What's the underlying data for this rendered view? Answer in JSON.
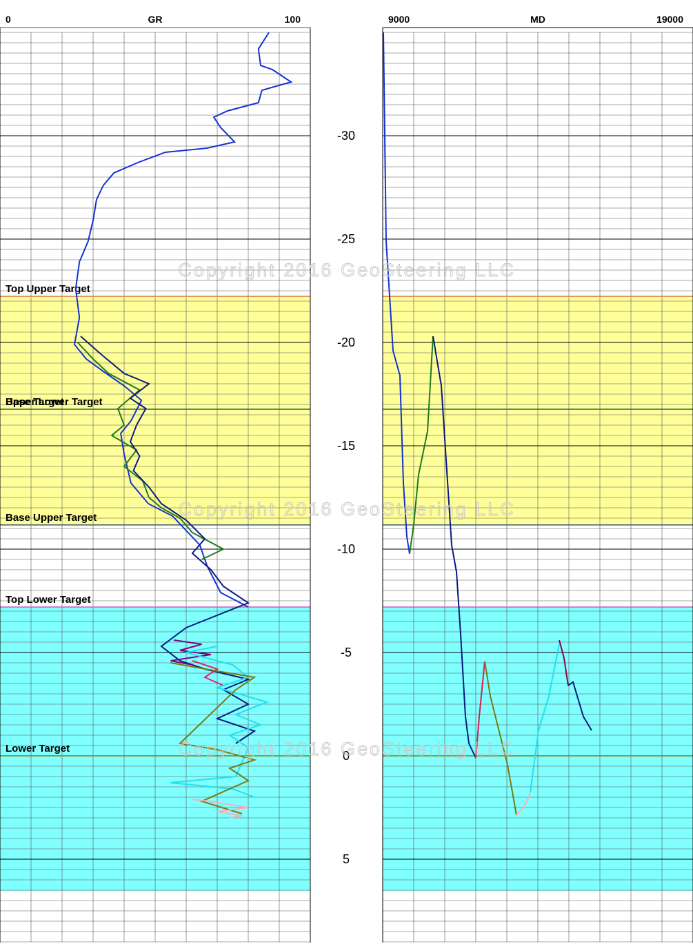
{
  "chart_data": [
    {
      "type": "line",
      "xlabel": "GR",
      "xlim": [
        0,
        100
      ],
      "xticks": [
        0,
        100
      ],
      "ylim": [
        -35,
        9
      ],
      "yticks": [
        -30,
        -25,
        -20,
        -15,
        -10,
        -5,
        0,
        5
      ],
      "grid": true,
      "watermark": "Copyright 2016 GeoSteering LLC",
      "zones": [
        {
          "top": -22.23,
          "base": -11.17,
          "color": "#ffff99"
        },
        {
          "top": -7.2,
          "base": 6.53,
          "color": "#80ffff"
        }
      ],
      "formations": [
        {
          "label": "Top Upper Target",
          "depth": -22.23,
          "color": "#e08040"
        },
        {
          "label": "Upper Lower Target",
          "depth": -16.77,
          "color": "#2e6b4f"
        },
        {
          "label": "Base Target",
          "depth": -16.77,
          "color": "#2e6b4f"
        },
        {
          "label": "Base Upper Target",
          "depth": -11.17,
          "color": "#405a70"
        },
        {
          "label": "Top Lower Target",
          "depth": -7.2,
          "color": "#c060c0"
        },
        {
          "label": "Lower Target",
          "depth": 0,
          "color": "#808000"
        }
      ],
      "series": [
        {
          "color": "#1432d2",
          "x": [
            86.7,
            83.3,
            84,
            87.8,
            93.8,
            84.4,
            83.3,
            73.3,
            68.9,
            71.1,
            75.6,
            66.7,
            53.3,
            44.4,
            36.7,
            33.3,
            31.1,
            30,
            28.4,
            25.6,
            24.4,
            25.6,
            24,
            27.8,
            33.3,
            40,
            45.6,
            42.2,
            38.9,
            40,
            42.2,
            47.8,
            55.6,
            60,
            64.4,
            66.7,
            71.1,
            80
          ],
          "values": [
            -35,
            -34.2,
            -33.4,
            -33.2,
            -32.6,
            -32.2,
            -31.6,
            -31.2,
            -30.9,
            -30.4,
            -29.7,
            -29.4,
            -29.2,
            -28.7,
            -28.2,
            -27.6,
            -26.9,
            -25.9,
            -24.9,
            -23.9,
            -22.6,
            -21.2,
            -19.9,
            -19.2,
            -18.6,
            -17.9,
            -17.2,
            -16.2,
            -15.6,
            -14.6,
            -13.2,
            -12.2,
            -11.6,
            -10.9,
            -10.2,
            -9.2,
            -7.9,
            -7.2
          ]
        },
        {
          "color": "#1e7a1e",
          "x": [
            25,
            30,
            35,
            45,
            38,
            40,
            36,
            44,
            40,
            46,
            48,
            52,
            58,
            62,
            72,
            65
          ],
          "values": [
            -20,
            -19.2,
            -18.5,
            -17.7,
            -16.8,
            -16,
            -15.5,
            -14.8,
            -14,
            -13.3,
            -12.5,
            -12,
            -11.5,
            -10.8,
            -10,
            -9.5
          ]
        },
        {
          "color": "#0a1a80",
          "x": [
            26,
            32,
            40,
            48,
            42,
            47,
            44,
            42,
            45,
            43,
            48,
            52,
            60,
            66,
            62,
            68,
            72,
            80,
            70,
            60,
            52,
            58,
            66,
            80,
            72,
            80,
            70,
            82,
            76
          ],
          "values": [
            -20.3,
            -19.5,
            -18.5,
            -18,
            -17.3,
            -16.8,
            -16,
            -15.2,
            -14.5,
            -13.8,
            -13,
            -12.2,
            -11.4,
            -10.5,
            -9.8,
            -9,
            -8.2,
            -7.4,
            -6.8,
            -6.2,
            -5.3,
            -4.6,
            -4.2,
            -3.7,
            -3.2,
            -2.5,
            -1.8,
            -1.2,
            -0.6
          ]
        },
        {
          "color": "#800080",
          "x": [
            56,
            65,
            58,
            68,
            55,
            62
          ],
          "values": [
            -5.6,
            -5.4,
            -5.1,
            -4.9,
            -4.6,
            -4.4
          ]
        },
        {
          "color": "#e0207a",
          "x": [
            62,
            70,
            66,
            72
          ],
          "values": [
            -4.6,
            -4.2,
            -3.8,
            -3.4
          ]
        },
        {
          "color": "#20e0f0",
          "x": [
            70,
            60,
            75,
            80,
            70,
            86,
            76,
            84,
            74,
            80,
            78,
            76,
            55,
            75,
            82
          ],
          "values": [
            -5.3,
            -5,
            -4.4,
            -3.8,
            -3.3,
            -2.6,
            -2,
            -1.5,
            -1,
            -0.4,
            0.3,
            1,
            1.3,
            1.6,
            2
          ]
        },
        {
          "color": "#7a7a10",
          "x": [
            55,
            70,
            82,
            76,
            58,
            70,
            82,
            74,
            80,
            65,
            78
          ],
          "values": [
            -4.5,
            -4.1,
            -3.8,
            -3.2,
            -0.6,
            -0.3,
            0.2,
            0.6,
            1.2,
            2.2,
            2.8
          ]
        },
        {
          "color": "#f4b0c0",
          "x": [
            62,
            72,
            80,
            70,
            78,
            74
          ],
          "values": [
            2.1,
            2.3,
            2.5,
            2.7,
            2.9,
            3.0
          ]
        }
      ]
    },
    {
      "type": "line",
      "xlabel": "MD",
      "xlim": [
        9000,
        19000
      ],
      "xticks": [
        9000,
        19000
      ],
      "ylim": [
        -35,
        9
      ],
      "yticks": [
        -30,
        -25,
        -20,
        -15,
        -10,
        -5,
        0,
        5
      ],
      "grid": true,
      "series": [
        {
          "color": "#1432d2",
          "x": [
            9022,
            9111,
            9333,
            9556,
            9667,
            9778,
            9867
          ],
          "values": [
            -35,
            -24.9,
            -19.6,
            -18.4,
            -13.2,
            -10.6,
            -9.77
          ]
        },
        {
          "color": "#1e7a1e",
          "x": [
            9867,
            10000,
            10156,
            10444,
            10622
          ],
          "values": [
            -9.77,
            -11.2,
            -13.6,
            -15.7,
            -20.3
          ]
        },
        {
          "color": "#0a1a80",
          "x": [
            10622,
            10889,
            11222,
            11378,
            11511,
            11667,
            11778,
            12000
          ],
          "values": [
            -20.3,
            -17.9,
            -10.2,
            -8.9,
            -5.9,
            -1.9,
            -0.6,
            0.1
          ]
        },
        {
          "color": "#d0205a",
          "x": [
            12000,
            12111,
            12289
          ],
          "values": [
            0.1,
            -1.9,
            -4.57
          ]
        },
        {
          "color": "#7a7a10",
          "x": [
            12289,
            12467,
            12800,
            13022,
            13311
          ],
          "values": [
            -4.57,
            -2.9,
            -0.9,
            0.43,
            2.87
          ]
        },
        {
          "color": "#f4b0c0",
          "x": [
            13311,
            13578,
            13756
          ],
          "values": [
            2.87,
            2.43,
            1.77
          ]
        },
        {
          "color": "#20e0f0",
          "x": [
            13756,
            14022,
            14356,
            14689
          ],
          "values": [
            1.77,
            -1.23,
            -2.9,
            -5.4
          ]
        },
        {
          "color": "#900050",
          "x": [
            14689,
            14844,
            14978
          ],
          "values": [
            -5.6,
            -4.73,
            -3.4
          ]
        },
        {
          "color": "#0a1a80",
          "x": [
            14978,
            15133,
            15467,
            15733
          ],
          "values": [
            -3.4,
            -3.57,
            -1.9,
            -1.23
          ]
        }
      ]
    }
  ]
}
